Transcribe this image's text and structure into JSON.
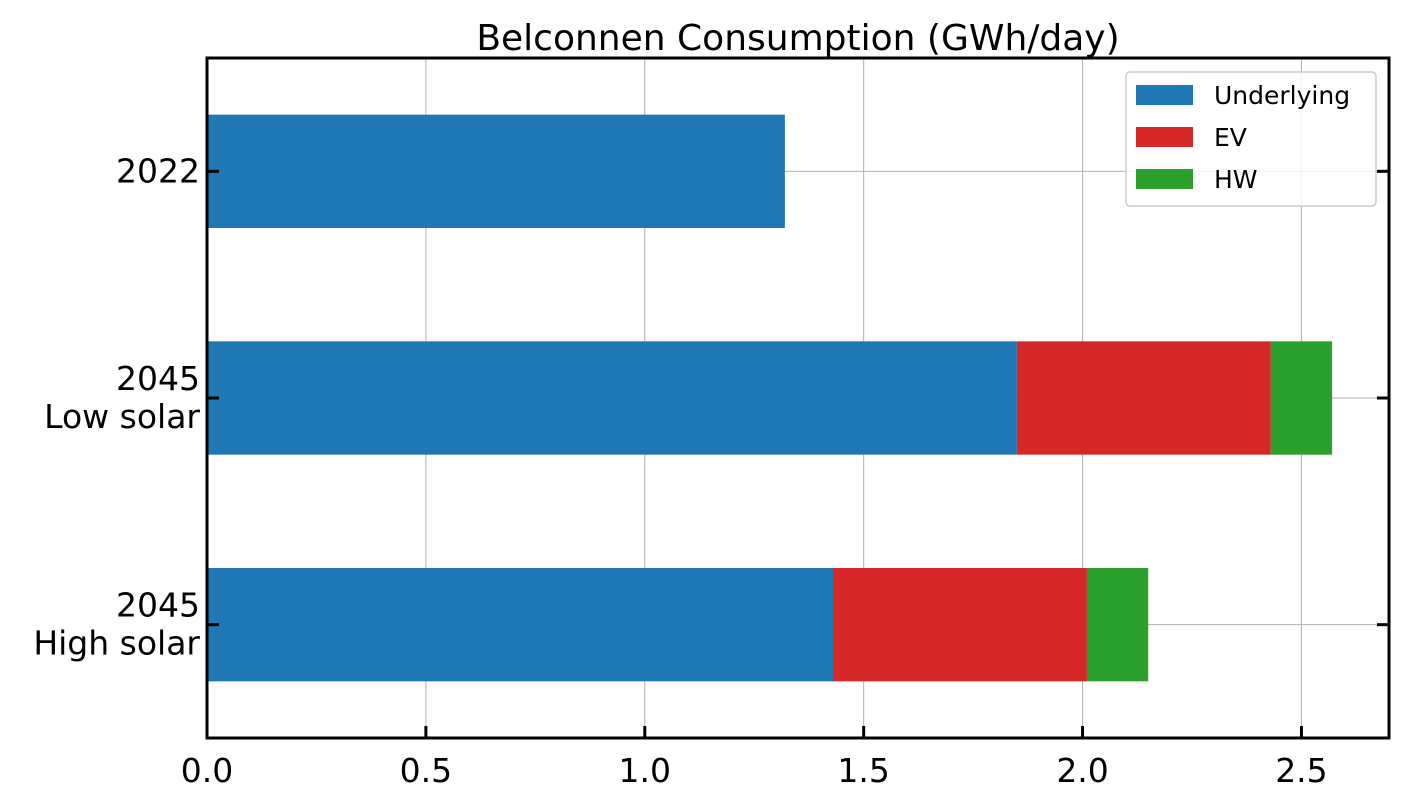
{
  "chart_data": {
    "type": "bar",
    "orientation": "horizontal",
    "stacked": true,
    "title": "Belconnen Consumption (GWh/day)",
    "xlabel": "",
    "ylabel": "",
    "xlim": [
      0,
      2.7
    ],
    "x_ticks": [
      "0.0",
      "0.5",
      "1.0",
      "1.5",
      "2.0",
      "2.5"
    ],
    "x_tick_values": [
      0,
      0.5,
      1.0,
      1.5,
      2.0,
      2.5
    ],
    "categories": [
      [
        "2022"
      ],
      [
        "2045",
        "Low solar"
      ],
      [
        "2045",
        "High solar"
      ]
    ],
    "series": [
      {
        "name": "Underlying",
        "color": "#1f77b4",
        "values": [
          1.32,
          1.85,
          1.43
        ]
      },
      {
        "name": "EV",
        "color": "#d62728",
        "values": [
          0,
          0.58,
          0.58
        ]
      },
      {
        "name": "HW",
        "color": "#2ca02c",
        "values": [
          0,
          0.14,
          0.14
        ]
      }
    ],
    "grid": true,
    "legend_position": "top-right"
  }
}
